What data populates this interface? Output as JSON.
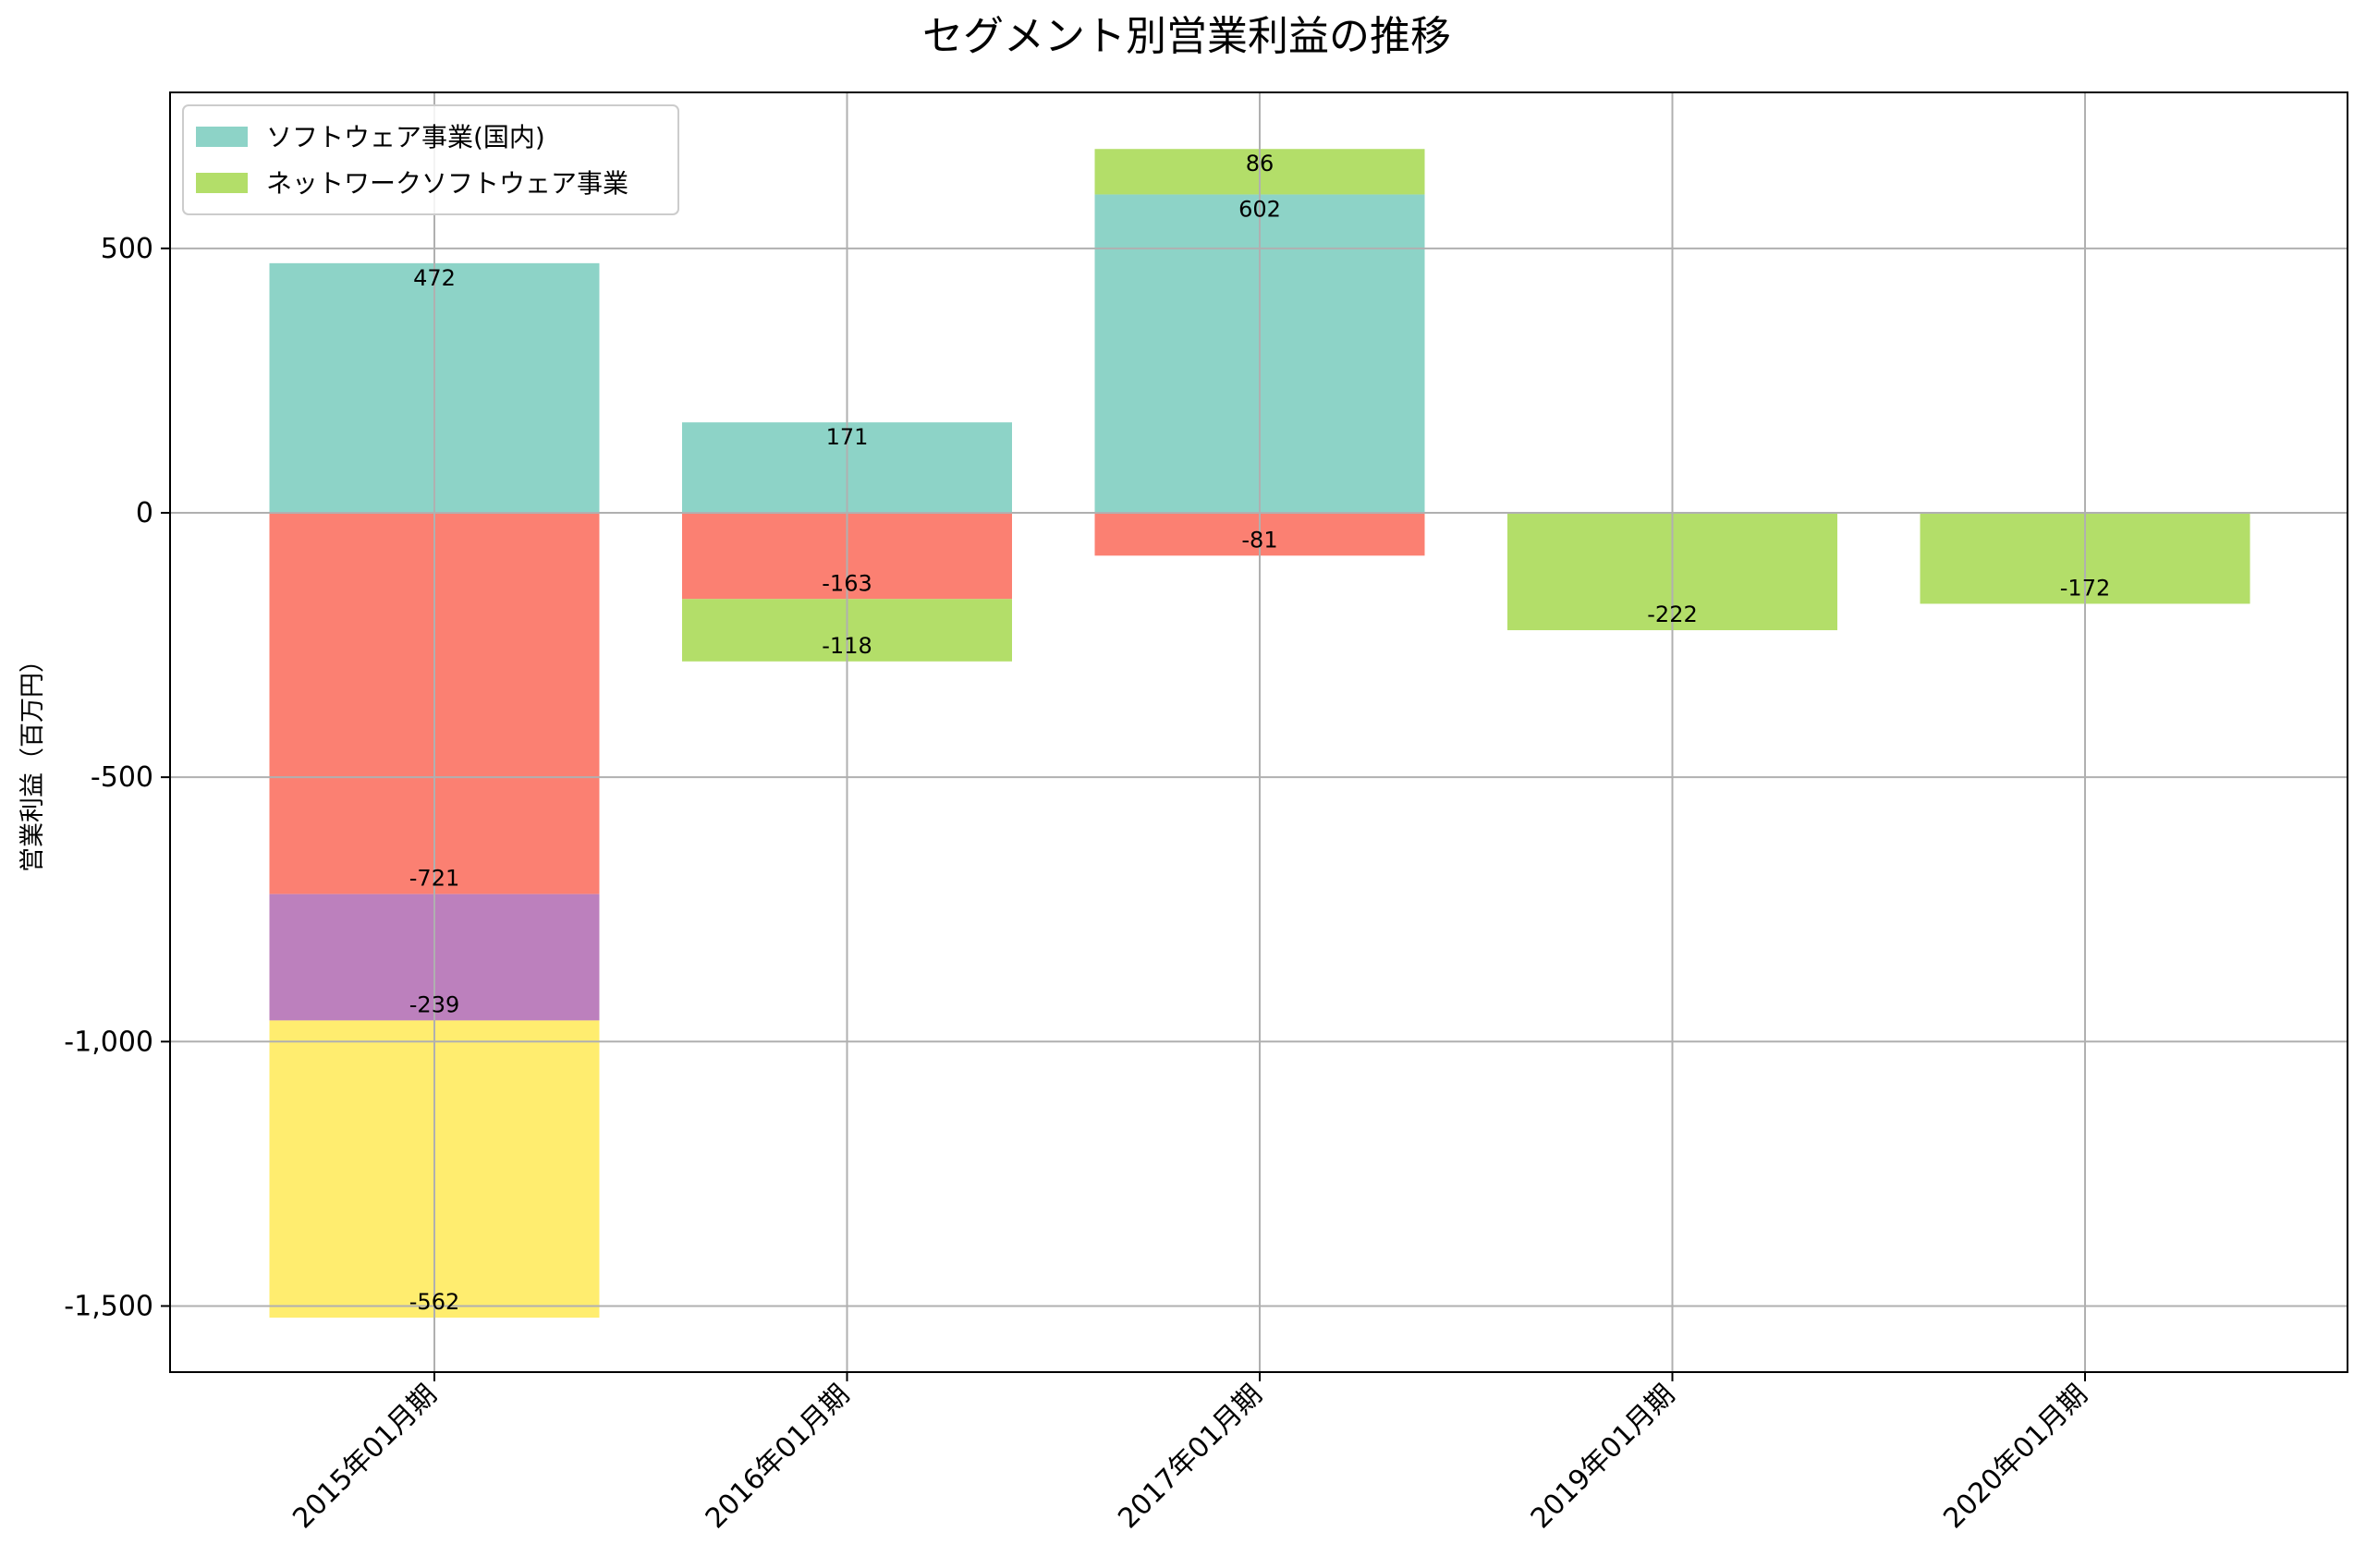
{
  "chart_data": {
    "type": "bar",
    "stacked": true,
    "title": "セグメント別営業利益の推移",
    "xlabel": "",
    "ylabel": "営業利益（百万円）",
    "categories": [
      "2015年01月期",
      "2016年01月期",
      "2017年01月期",
      "2019年01月期",
      "2020年01月期"
    ],
    "ylim": [
      -1625,
      795
    ],
    "yticks": [
      500,
      0,
      -500,
      -1000,
      -1500
    ],
    "ytick_labels": [
      "500",
      "0",
      "-500",
      "-1,000",
      "-1,500"
    ],
    "grid": true,
    "legend_position": "top-left",
    "series": [
      {
        "name": "ソフトウェア事業(国内)",
        "color": "#8dd3c7",
        "values": [
          472,
          171,
          602,
          null,
          null
        ]
      },
      {
        "name": "ネットワークソフトウェア事業",
        "color": "#b3de69",
        "values": [
          null,
          -118,
          86,
          -222,
          -172
        ]
      },
      {
        "name": "",
        "color": "#fb8072",
        "values": [
          -721,
          -163,
          -81,
          null,
          null
        ]
      },
      {
        "name": "",
        "color": "#bc80bd",
        "values": [
          -239,
          null,
          null,
          null,
          null
        ]
      },
      {
        "name": "",
        "color": "#ffed6f",
        "values": [
          -562,
          null,
          null,
          null,
          null
        ]
      }
    ],
    "stack_order": [
      [
        0,
        2,
        3,
        4
      ],
      [
        0,
        2,
        1
      ],
      [
        0,
        1,
        2
      ],
      [
        1
      ],
      [
        1
      ]
    ]
  }
}
